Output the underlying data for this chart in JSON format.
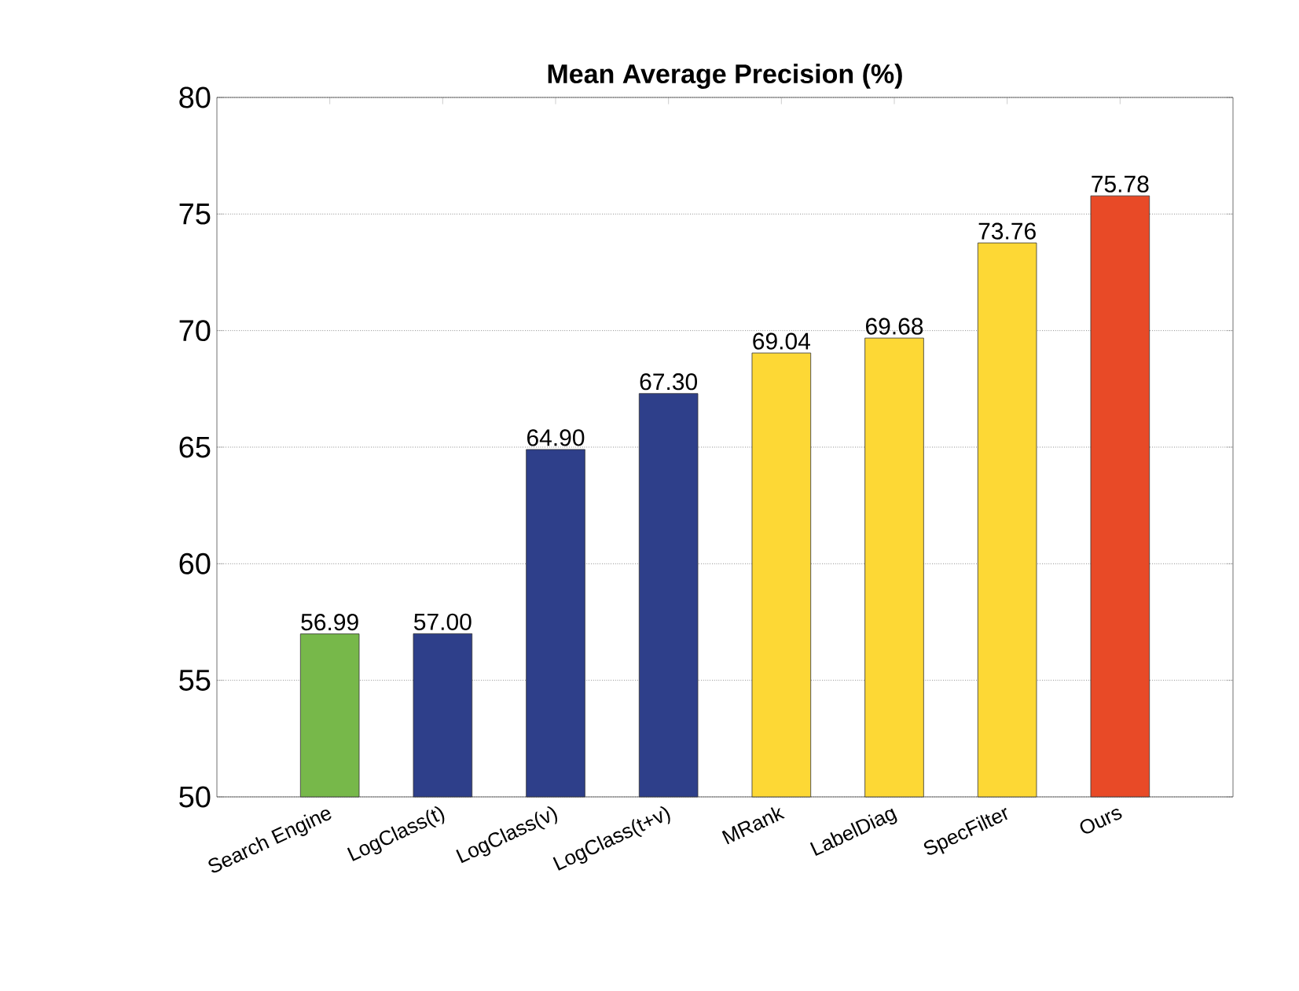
{
  "chart_data": {
    "type": "bar",
    "title": "Mean Average Precision (%)",
    "categories": [
      "Search Engine",
      "LogClass(t)",
      "LogClass(v)",
      "LogClass(t+v)",
      "MRank",
      "LabelDiag",
      "SpecFilter",
      "Ours"
    ],
    "values": [
      56.99,
      57.0,
      64.9,
      67.3,
      69.04,
      69.68,
      73.76,
      75.78
    ],
    "value_labels": [
      "56.99",
      "57.00",
      "64.90",
      "67.30",
      "69.04",
      "69.68",
      "73.76",
      "75.78"
    ],
    "colors": [
      "#77b84a",
      "#2e3f8a",
      "#2e3f8a",
      "#2e3f8a",
      "#fdd835",
      "#fdd835",
      "#fdd835",
      "#e84a27"
    ],
    "ylim": [
      50,
      80
    ],
    "yticks": [
      50,
      55,
      60,
      65,
      70,
      75,
      80
    ],
    "grid": "y"
  }
}
